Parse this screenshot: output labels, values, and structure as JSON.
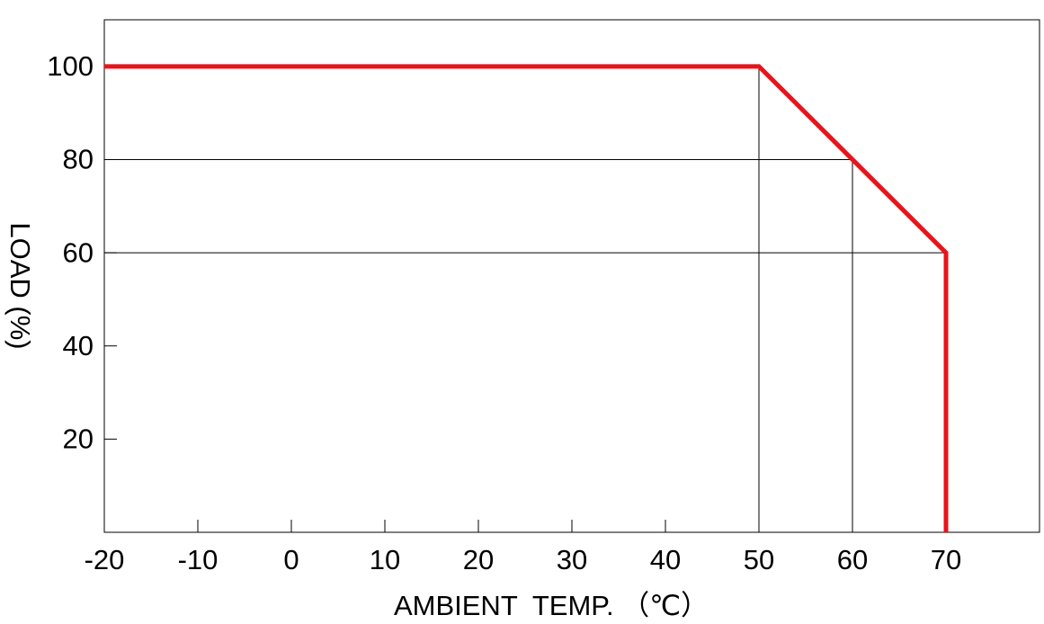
{
  "chart_data": {
    "type": "line",
    "x_label": "AMBIENT  TEMP. （℃）",
    "y_label": "LOAD (%)",
    "x": [
      -20,
      50,
      60,
      70,
      70
    ],
    "values": [
      100,
      100,
      80,
      60,
      0
    ],
    "color": "#e8141b",
    "xlim": [
      -20,
      80
    ],
    "ylim": [
      0,
      110
    ],
    "xticks": [
      -20,
      -10,
      0,
      10,
      20,
      30,
      40,
      50,
      60,
      70
    ],
    "yticks": [
      20,
      40,
      60,
      80,
      100
    ],
    "drop_lines": true
  }
}
